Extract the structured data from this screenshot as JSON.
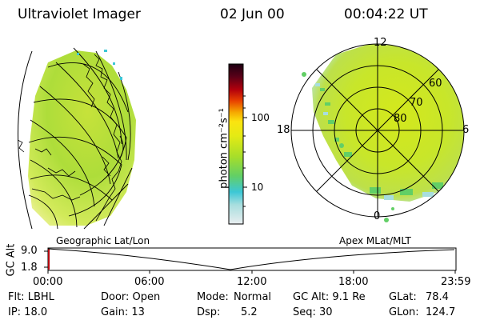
{
  "header": {
    "instrument": "Ultraviolet Imager",
    "date": "02 Jun 00",
    "time": "00:04:22 UT"
  },
  "colorbar": {
    "unit_label": "photon cm⁻²s⁻¹",
    "ticks": [
      "100",
      "10"
    ],
    "stops": [
      "#e9eef0",
      "#a8dede",
      "#3cc7d6",
      "#62cf66",
      "#a6de2a",
      "#e4ea14",
      "#fbe410",
      "#f5a600",
      "#e84000",
      "#b2000c",
      "#5a0018",
      "#1d0012"
    ]
  },
  "left_panel": {
    "caption": "Geographic Lat/Lon"
  },
  "right_panel": {
    "caption": "Apex MLat/MLT",
    "mlt_labels": [
      "12",
      "18",
      "6",
      "0"
    ],
    "mlat_labels": [
      "60",
      "70",
      "80"
    ]
  },
  "altitude_plot": {
    "ylabel": "GC Alt",
    "yticks": [
      "9.0",
      "1.8"
    ],
    "xticks": [
      "00:00",
      "06:00",
      "12:00",
      "18:00",
      "23:59"
    ]
  },
  "status": {
    "flt": "Flt: LBHL",
    "ip": "IP: 18.0",
    "door": "Door: Open",
    "gain": "Gain: 13",
    "mode_label": "Mode:",
    "mode_value": "Normal",
    "dsp_label": "Dsp:",
    "dsp_value": "5.2",
    "gcalt": "GC Alt: 9.1 Re",
    "seq": "Seq: 30",
    "glat_label": "GLat:",
    "glat_value": "78.4",
    "glon_label": "GLon:",
    "glon_value": "124.7"
  }
}
